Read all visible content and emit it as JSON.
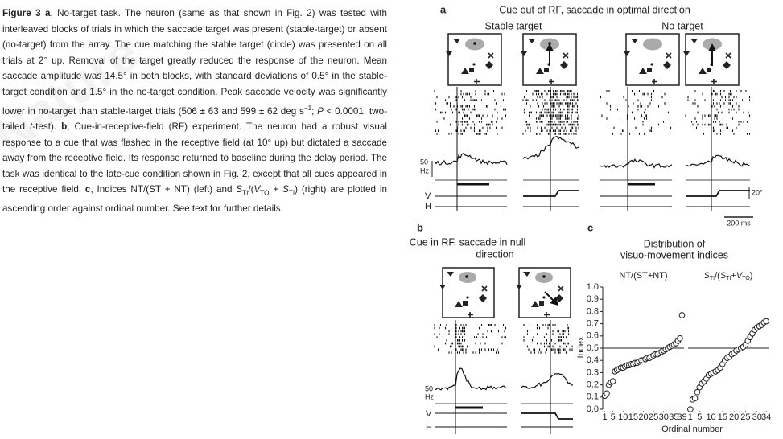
{
  "watermark": "Nature",
  "caption": {
    "runs": [
      {
        "t": "Figure 3 a",
        "style": "bold"
      },
      {
        "t": ", No-target task. The neuron (same as that shown in Fig. 2) was tested with interleaved blocks of trials in which the saccade target was present (stable-target) or absent (no-target) from the array. The cue matching the stable target (circle) was presented on all trials at 2° up. Removal of the target greatly reduced the response of the neuron. Mean saccade amplitude was 14.5° in both blocks, with standard deviations of 0.5° in the stable-target condition and 1.5° in the no-target condition. Peak saccade velocity was significantly lower in no-target than stable-target trials (506 ± 63 and 599 ± 62 deg s"
      },
      {
        "t": "−1",
        "style": "sup"
      },
      {
        "t": "; "
      },
      {
        "t": "P",
        "style": "italic"
      },
      {
        "t": " < 0.0001, two-tailed "
      },
      {
        "t": "t",
        "style": "italic"
      },
      {
        "t": "-test). "
      },
      {
        "t": "b",
        "style": "bold"
      },
      {
        "t": ", Cue-in-receptive-field (RF) experiment. The neuron had a robust visual response to a cue that was flashed in the receptive field (at 10° up) but dictated a saccade away from the receptive field. Its response returned to baseline during the delay period. The task was identical to the late-cue condition shown in Fig. 2, except that all cues appeared in the receptive field. "
      },
      {
        "t": "c",
        "style": "bold"
      },
      {
        "t": ", Indices NT/(ST + NT) (left) and "
      },
      {
        "t": "S",
        "style": "italic"
      },
      {
        "t": "TI",
        "style": "sub"
      },
      {
        "t": "/("
      },
      {
        "t": "V",
        "style": "italic"
      },
      {
        "t": "TO",
        "style": "sub"
      },
      {
        "t": " + "
      },
      {
        "t": "S",
        "style": "italic"
      },
      {
        "t": "TI",
        "style": "sub"
      },
      {
        "t": ") (right) are plotted in ascending order against ordinal number. See text for further details."
      }
    ]
  },
  "panel_a": {
    "label": "a",
    "title": "Cue out of RF, saccade in optimal direction",
    "conditions": [
      "Stable target",
      "No target"
    ],
    "psth_scale": 50,
    "psth_unit": "Hz",
    "v_label": "V",
    "h_label": "H",
    "position_scale": "20°",
    "time_scale": "200 ms"
  },
  "panel_b": {
    "label": "b",
    "title_lines": [
      "Cue in RF, saccade in null",
      "direction"
    ],
    "psth_scale": 50,
    "psth_unit": "Hz",
    "v_label": "V",
    "h_label": "H"
  },
  "panel_c": {
    "label": "c",
    "title_lines": [
      "Distribution of",
      "visuo-movement indices"
    ],
    "x_label": "Ordinal number",
    "chart_data": [
      {
        "type": "scatter",
        "title": [
          {
            "t": "NT/(ST+NT)"
          }
        ],
        "y_label": "Index",
        "show_y_axis": true,
        "reference_line": 0.5,
        "x": [
          1,
          2,
          3,
          4,
          5,
          6,
          7,
          8,
          9,
          10,
          11,
          12,
          13,
          14,
          15,
          16,
          17,
          18,
          19,
          20,
          21,
          22,
          23,
          24,
          25,
          26,
          27,
          28,
          29,
          30,
          31,
          32,
          33,
          34,
          35,
          36,
          37,
          38,
          39
        ],
        "values": [
          0.11,
          0.13,
          0.2,
          0.22,
          0.23,
          0.31,
          0.32,
          0.33,
          0.34,
          0.34,
          0.35,
          0.36,
          0.36,
          0.37,
          0.37,
          0.38,
          0.38,
          0.39,
          0.4,
          0.4,
          0.41,
          0.42,
          0.42,
          0.43,
          0.44,
          0.45,
          0.45,
          0.46,
          0.47,
          0.48,
          0.49,
          0.5,
          0.51,
          0.52,
          0.53,
          0.54,
          0.56,
          0.58,
          0.77
        ],
        "xlim": [
          0,
          40
        ],
        "xticks": [
          1,
          5,
          10,
          15,
          20,
          25,
          30,
          35,
          39
        ],
        "ylim": [
          0,
          1
        ],
        "yticks": [
          {
            "value": 0,
            "label": "0.0"
          },
          {
            "value": 0.1,
            "label": "0.1"
          },
          {
            "value": 0.2,
            "label": "0.2"
          },
          {
            "value": 0.3,
            "label": "0.3"
          },
          {
            "value": 0.4,
            "label": "0.4"
          },
          {
            "value": 0.5,
            "label": "0.5"
          },
          {
            "value": 0.6,
            "label": "0.6"
          },
          {
            "value": 0.7,
            "label": "0.7"
          },
          {
            "value": 0.8,
            "label": "0.8"
          },
          {
            "value": 0.9,
            "label": "0.9"
          },
          {
            "value": 1,
            "label": "1.0"
          }
        ]
      },
      {
        "type": "scatter",
        "title": [
          {
            "t": "S",
            "style": "italic"
          },
          {
            "t": "TI",
            "style": "sub"
          },
          {
            "t": "/("
          },
          {
            "t": "S",
            "style": "italic"
          },
          {
            "t": "TI",
            "style": "sub"
          },
          {
            "t": "+"
          },
          {
            "t": "V",
            "style": "italic"
          },
          {
            "t": "TO",
            "style": "sub"
          },
          {
            "t": ")"
          }
        ],
        "show_y_axis": false,
        "reference_line": 0.5,
        "x": [
          1,
          2,
          3,
          4,
          5,
          6,
          7,
          8,
          9,
          10,
          11,
          12,
          13,
          14,
          15,
          16,
          17,
          18,
          19,
          20,
          21,
          22,
          23,
          24,
          25,
          26,
          27,
          28,
          29,
          30,
          31,
          32,
          33,
          34
        ],
        "values": [
          0,
          0.08,
          0.09,
          0.14,
          0.18,
          0.21,
          0.23,
          0.25,
          0.28,
          0.29,
          0.3,
          0.31,
          0.32,
          0.34,
          0.37,
          0.4,
          0.42,
          0.43,
          0.45,
          0.46,
          0.48,
          0.49,
          0.5,
          0.51,
          0.53,
          0.56,
          0.59,
          0.62,
          0.65,
          0.67,
          0.68,
          0.69,
          0.71,
          0.72
        ],
        "xlim": [
          0,
          35
        ],
        "xticks": [
          1,
          5,
          10,
          15,
          20,
          25,
          30,
          34
        ],
        "ylim": [
          0,
          1
        ]
      }
    ]
  }
}
